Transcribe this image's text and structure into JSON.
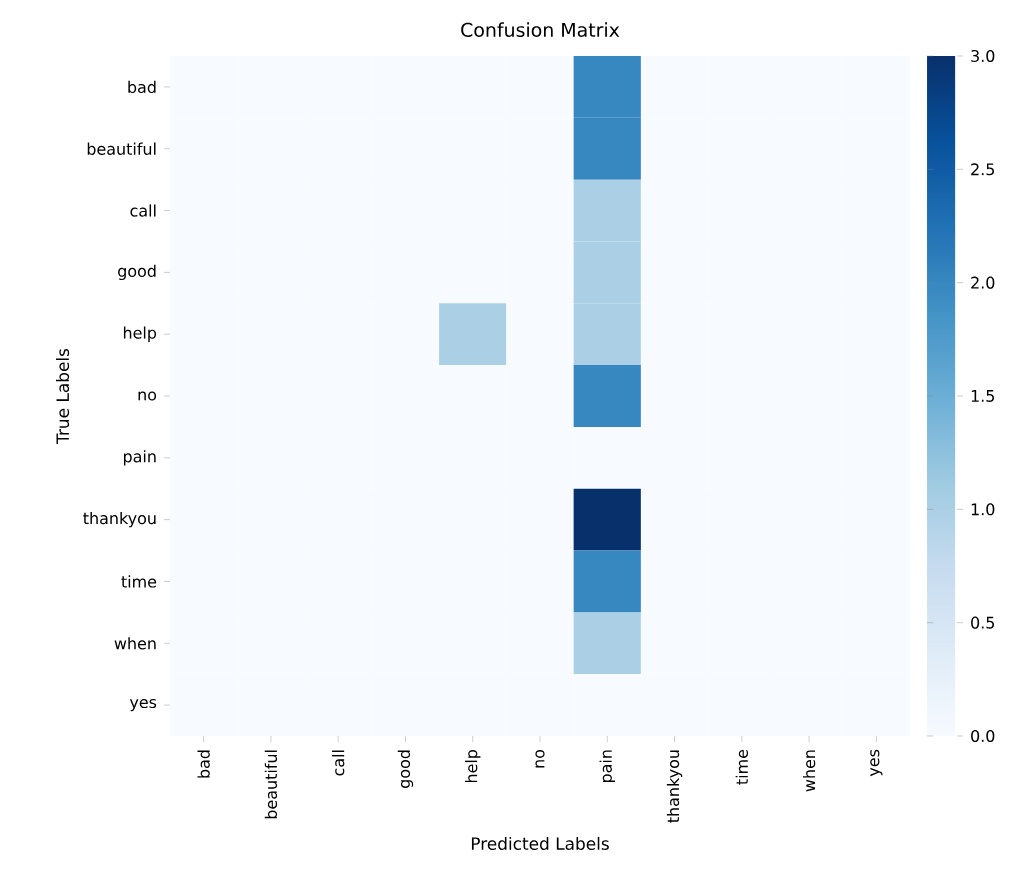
{
  "chart_data": {
    "type": "heatmap",
    "title": "Confusion Matrix",
    "xlabel": "Predicted Labels",
    "ylabel": "True Labels",
    "categories": [
      "bad",
      "beautiful",
      "call",
      "good",
      "help",
      "no",
      "pain",
      "thankyou",
      "time",
      "when",
      "yes"
    ],
    "y_categories": [
      "bad",
      "beautiful",
      "call",
      "good",
      "help",
      "no",
      "pain",
      "thankyou",
      "time",
      "when",
      "yes"
    ],
    "cells": [
      [
        0,
        0,
        0,
        0,
        0,
        0,
        2,
        0,
        0,
        0,
        0
      ],
      [
        0,
        0,
        0,
        0,
        0,
        0,
        2,
        0,
        0,
        0,
        0
      ],
      [
        0,
        0,
        0,
        0,
        0,
        0,
        1,
        0,
        0,
        0,
        0
      ],
      [
        0,
        0,
        0,
        0,
        0,
        0,
        1,
        0,
        0,
        0,
        0
      ],
      [
        0,
        0,
        0,
        0,
        1,
        0,
        1,
        0,
        0,
        0,
        0
      ],
      [
        0,
        0,
        0,
        0,
        0,
        0,
        2,
        0,
        0,
        0,
        0
      ],
      [
        0,
        0,
        0,
        0,
        0,
        0,
        0,
        0,
        0,
        0,
        0
      ],
      [
        0,
        0,
        0,
        0,
        0,
        0,
        3,
        0,
        0,
        0,
        0
      ],
      [
        0,
        0,
        0,
        0,
        0,
        0,
        2,
        0,
        0,
        0,
        0
      ],
      [
        0,
        0,
        0,
        0,
        0,
        0,
        1,
        0,
        0,
        0,
        0
      ],
      [
        0,
        0,
        0,
        0,
        0,
        0,
        0,
        0,
        0,
        0,
        0
      ]
    ],
    "clim": [
      0,
      3
    ],
    "cticks": [
      {
        "value": 0,
        "label": "0.0"
      },
      {
        "value": 0.5,
        "label": "0.5"
      },
      {
        "value": 1,
        "label": "1.0"
      },
      {
        "value": 1.5,
        "label": "1.5"
      },
      {
        "value": 2,
        "label": "2.0"
      },
      {
        "value": 2.5,
        "label": "2.5"
      },
      {
        "value": 3,
        "label": "3.0"
      }
    ]
  }
}
